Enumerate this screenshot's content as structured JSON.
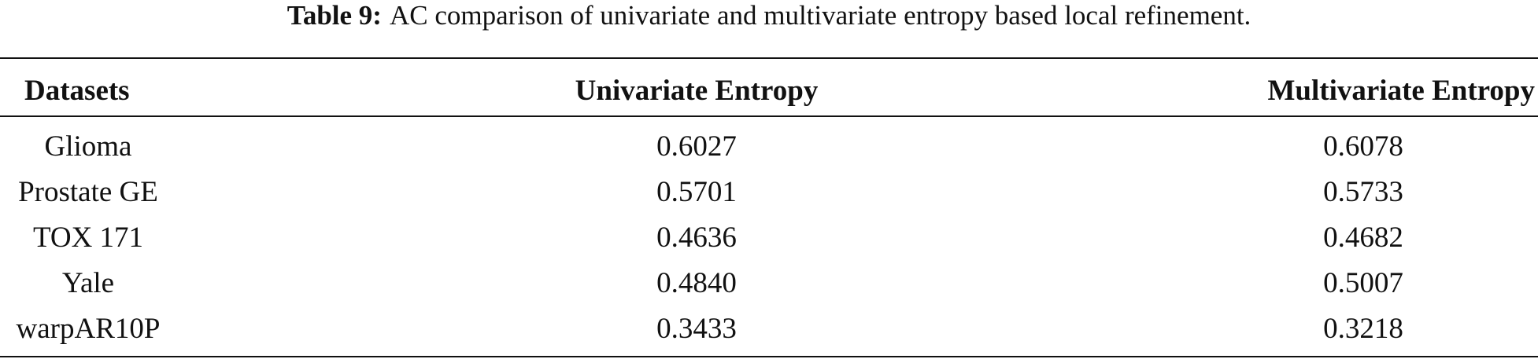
{
  "caption": {
    "label": "Table 9:",
    "text": "AC comparison of univariate and multivariate entropy based local refinement."
  },
  "table": {
    "header": [
      "Datasets",
      "Univariate Entropy",
      "Multivariate Entropy"
    ],
    "rows": [
      [
        "Glioma",
        "0.6027",
        "0.6078"
      ],
      [
        "Prostate GE",
        "0.5701",
        "0.5733"
      ],
      [
        "TOX 171",
        "0.4636",
        "0.4682"
      ],
      [
        "Yale",
        "0.4840",
        "0.5007"
      ],
      [
        "warpAR10P",
        "0.3433",
        "0.3218"
      ]
    ]
  }
}
